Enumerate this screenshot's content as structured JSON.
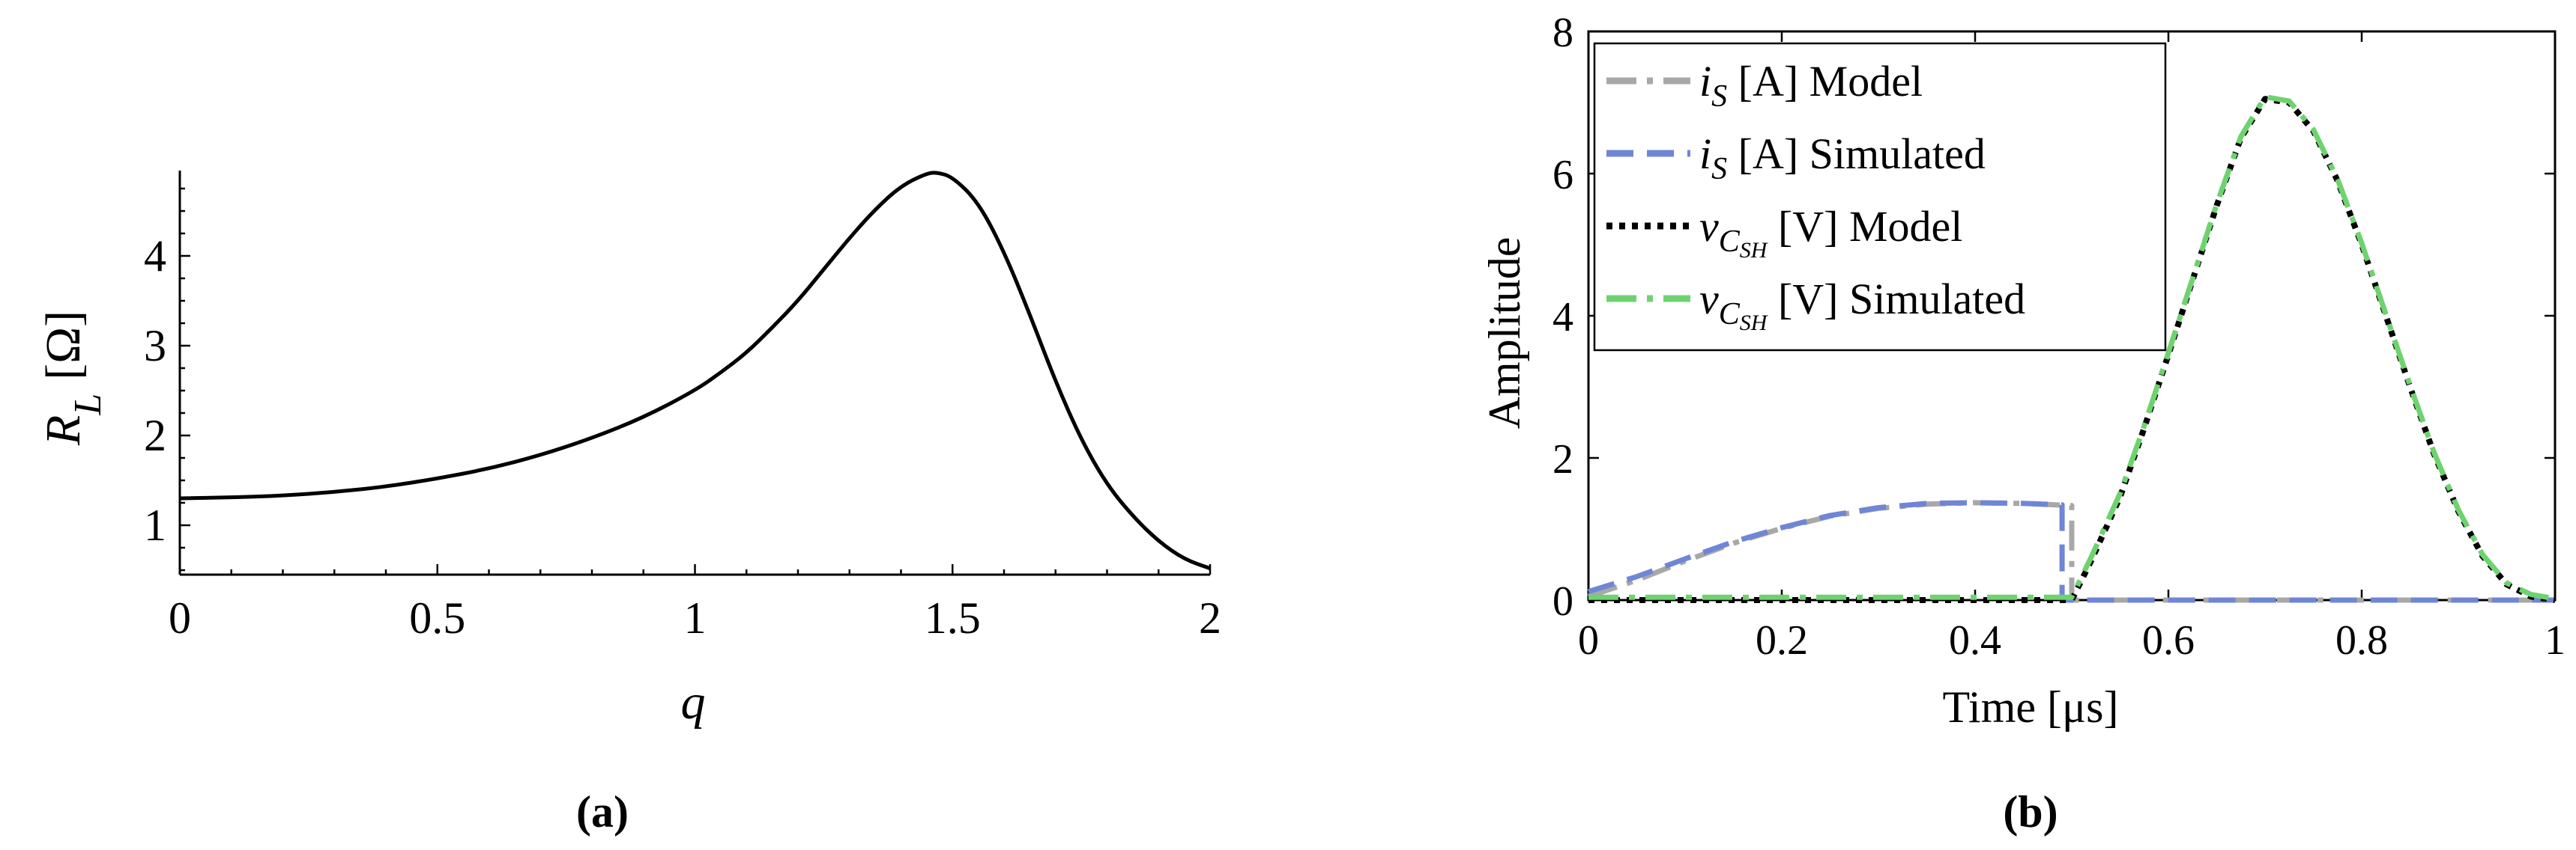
{
  "chart_data": [
    {
      "type": "line",
      "panel_label": "(a)",
      "xlabel": "q",
      "ylabel_main": "R",
      "ylabel_sub": "L",
      "ylabel_unit": "[Ω]",
      "xlim": [
        0,
        2
      ],
      "ylim": [
        0.45,
        4.95
      ],
      "xticks": [
        0,
        0.5,
        1,
        1.5,
        2
      ],
      "xtick_labels": [
        "0",
        "0.5",
        "1",
        "1.5",
        "2"
      ],
      "yticks": [
        1,
        2,
        3,
        4
      ],
      "ytick_labels": [
        "1",
        "2",
        "3",
        "4"
      ],
      "grid": false,
      "series": [
        {
          "name": "R_L",
          "color": "#000000",
          "x": [
            0,
            0.1,
            0.2,
            0.3,
            0.4,
            0.5,
            0.6,
            0.7,
            0.8,
            0.9,
            1.0,
            1.05,
            1.1,
            1.15,
            1.2,
            1.25,
            1.3,
            1.35,
            1.4,
            1.45,
            1.47,
            1.5,
            1.55,
            1.6,
            1.65,
            1.7,
            1.75,
            1.8,
            1.85,
            1.9,
            1.95,
            2.0
          ],
          "y": [
            1.3,
            1.31,
            1.33,
            1.37,
            1.43,
            1.52,
            1.63,
            1.78,
            1.97,
            2.2,
            2.5,
            2.7,
            2.92,
            3.2,
            3.5,
            3.85,
            4.2,
            4.52,
            4.78,
            4.92,
            4.93,
            4.88,
            4.6,
            4.05,
            3.35,
            2.6,
            1.95,
            1.45,
            1.1,
            0.82,
            0.62,
            0.52
          ]
        }
      ]
    },
    {
      "type": "line",
      "panel_label": "(b)",
      "xlabel": "Time [μs]",
      "ylabel": "Amplitude",
      "xlim": [
        0,
        1
      ],
      "ylim": [
        0,
        8
      ],
      "xticks": [
        0,
        0.2,
        0.4,
        0.6,
        0.8,
        1
      ],
      "xtick_labels": [
        "0",
        "0.2",
        "0.4",
        "0.6",
        "0.8",
        "1"
      ],
      "yticks": [
        0,
        2,
        4,
        6,
        8
      ],
      "ytick_labels": [
        "0",
        "2",
        "4",
        "6",
        "8"
      ],
      "grid": false,
      "legend_position": "top-left",
      "series": [
        {
          "name": "i_S [A] Model",
          "legend_symbol": "i",
          "legend_sub": "S",
          "legend_rest": " [A] Model",
          "color": "#a8a8a8",
          "style": "dashdot",
          "x": [
            0,
            0.05,
            0.1,
            0.15,
            0.2,
            0.25,
            0.3,
            0.35,
            0.4,
            0.45,
            0.5,
            0.5,
            1.0
          ],
          "y": [
            0.05,
            0.28,
            0.55,
            0.8,
            1.01,
            1.18,
            1.29,
            1.35,
            1.37,
            1.36,
            1.33,
            0,
            0
          ]
        },
        {
          "name": "i_S [A] Simulated",
          "legend_symbol": "i",
          "legend_sub": "S",
          "legend_rest": " [A] Simulated",
          "color": "#6f86d6",
          "style": "dashed",
          "x": [
            0,
            0.05,
            0.1,
            0.15,
            0.2,
            0.25,
            0.3,
            0.35,
            0.4,
            0.45,
            0.49,
            0.49,
            1.0
          ],
          "y": [
            0.12,
            0.33,
            0.58,
            0.82,
            1.02,
            1.19,
            1.3,
            1.36,
            1.37,
            1.36,
            1.34,
            0,
            0
          ]
        },
        {
          "name": "v_CSH [V] Model",
          "legend_symbol": "v",
          "legend_sub": "C",
          "legend_subsub": "SH",
          "legend_rest": " [V] Model",
          "color": "#000000",
          "style": "dotted",
          "x": [
            0,
            0.5,
            0.52,
            0.55,
            0.575,
            0.6,
            0.625,
            0.65,
            0.675,
            0.7,
            0.725,
            0.75,
            0.775,
            0.8,
            0.825,
            0.85,
            0.875,
            0.9,
            0.925,
            0.95,
            0.975,
            1.0
          ],
          "y": [
            0,
            0,
            0.55,
            1.45,
            2.42,
            3.45,
            4.5,
            5.55,
            6.5,
            7.05,
            7.0,
            6.6,
            5.9,
            5.0,
            4.0,
            3.0,
            2.05,
            1.25,
            0.62,
            0.22,
            0.05,
            0
          ]
        },
        {
          "name": "v_CSH [V] Simulated",
          "legend_symbol": "v",
          "legend_sub": "C",
          "legend_subsub": "SH",
          "legend_rest": " [V] Simulated",
          "color": "#6ed36e",
          "style": "dashdot",
          "x": [
            0,
            0.5,
            0.52,
            0.55,
            0.575,
            0.6,
            0.625,
            0.65,
            0.675,
            0.7,
            0.725,
            0.75,
            0.775,
            0.8,
            0.825,
            0.85,
            0.875,
            0.9,
            0.925,
            0.95,
            0.975,
            1.0
          ],
          "y": [
            0.04,
            0.04,
            0.6,
            1.5,
            2.45,
            3.48,
            4.52,
            5.57,
            6.52,
            7.08,
            7.02,
            6.62,
            5.92,
            5.02,
            4.02,
            3.02,
            2.07,
            1.27,
            0.64,
            0.24,
            0.08,
            0.02
          ]
        }
      ]
    }
  ]
}
